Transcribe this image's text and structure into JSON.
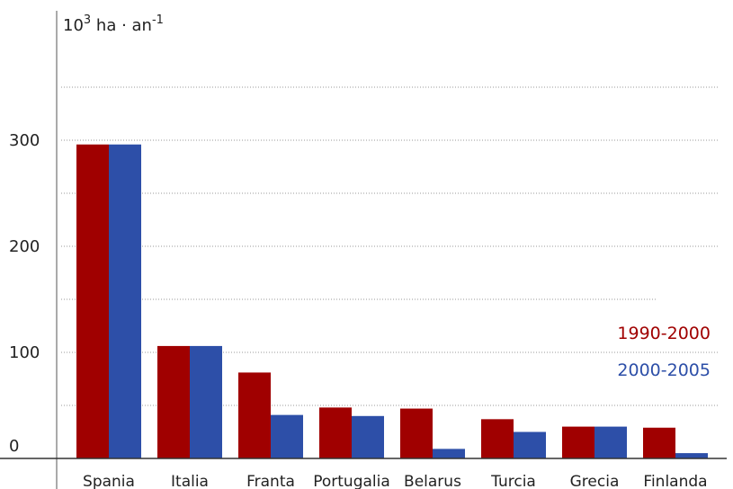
{
  "chart_data": {
    "type": "bar",
    "title": "",
    "xlabel": "",
    "ylabel": {
      "base": "10",
      "base_exp": "3",
      "unit": " ha · an",
      "unit_exp": "-1"
    },
    "categories": [
      "Spania",
      "Italia",
      "Franta",
      "Portugalia",
      "Belarus",
      "Turcia",
      "Grecia",
      "Finlanda"
    ],
    "series": [
      {
        "name": "1990-2000",
        "color": "#a00000",
        "values": [
          296,
          106,
          81,
          48,
          47,
          37,
          30,
          29
        ]
      },
      {
        "name": "2000-2005",
        "color": "#2d4fa8",
        "values": [
          296,
          106,
          41,
          40,
          9,
          25,
          30,
          5
        ]
      }
    ],
    "ylim": [
      0,
      375
    ],
    "yticks": [
      0,
      100,
      200,
      300
    ],
    "grid": true,
    "grid_style": "dotted",
    "legend_position": "right"
  }
}
